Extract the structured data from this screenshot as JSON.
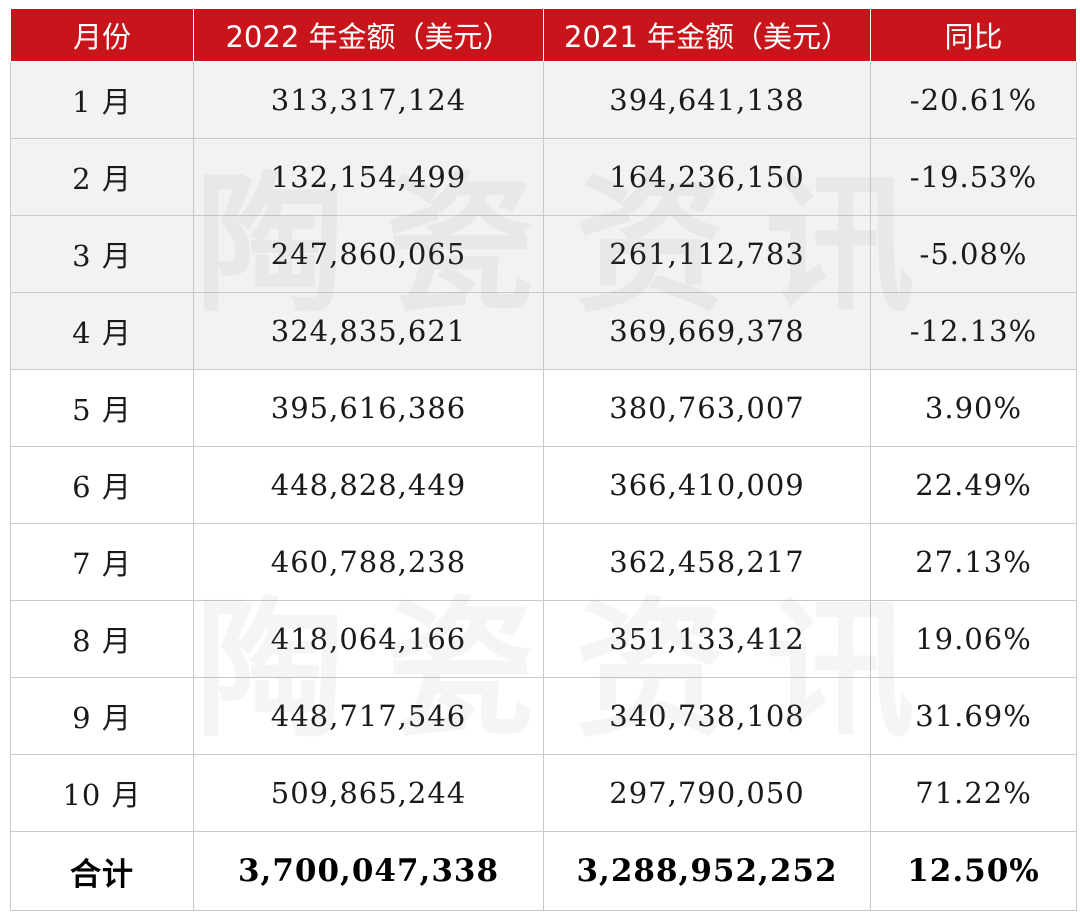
{
  "table": {
    "headers": [
      "月份",
      "2022 年金额（美元）",
      "2021 年金额（美元）",
      "同比"
    ],
    "rows": [
      {
        "month": "1 月",
        "amount_2022": "313,317,124",
        "amount_2021": "394,641,138",
        "yoy": "-20.61%"
      },
      {
        "month": "2 月",
        "amount_2022": "132,154,499",
        "amount_2021": "164,236,150",
        "yoy": "-19.53%"
      },
      {
        "month": "3 月",
        "amount_2022": "247,860,065",
        "amount_2021": "261,112,783",
        "yoy": "-5.08%"
      },
      {
        "month": "4 月",
        "amount_2022": "324,835,621",
        "amount_2021": "369,669,378",
        "yoy": "-12.13%"
      },
      {
        "month": "5 月",
        "amount_2022": "395,616,386",
        "amount_2021": "380,763,007",
        "yoy": "3.90%"
      },
      {
        "month": "6 月",
        "amount_2022": "448,828,449",
        "amount_2021": "366,410,009",
        "yoy": "22.49%"
      },
      {
        "month": "7 月",
        "amount_2022": "460,788,238",
        "amount_2021": "362,458,217",
        "yoy": "27.13%"
      },
      {
        "month": "8 月",
        "amount_2022": "418,064,166",
        "amount_2021": "351,133,412",
        "yoy": "19.06%"
      },
      {
        "month": "9 月",
        "amount_2022": "448,717,546",
        "amount_2021": "340,738,108",
        "yoy": "31.69%"
      },
      {
        "month": "10 月",
        "amount_2022": "509,865,244",
        "amount_2021": "297,790,050",
        "yoy": "71.22%"
      }
    ],
    "total": {
      "label": "合计",
      "amount_2022": "3,700,047,338",
      "amount_2021": "3,288,952,252",
      "yoy": "12.50%"
    }
  },
  "watermark": {
    "chars": [
      "陶",
      "瓷",
      "资",
      "讯"
    ]
  },
  "colors": {
    "header_bg": "#c8141b",
    "header_text": "#ffffff",
    "shaded_row_bg": "#f2f2f2",
    "border": "#c9c9c9"
  }
}
